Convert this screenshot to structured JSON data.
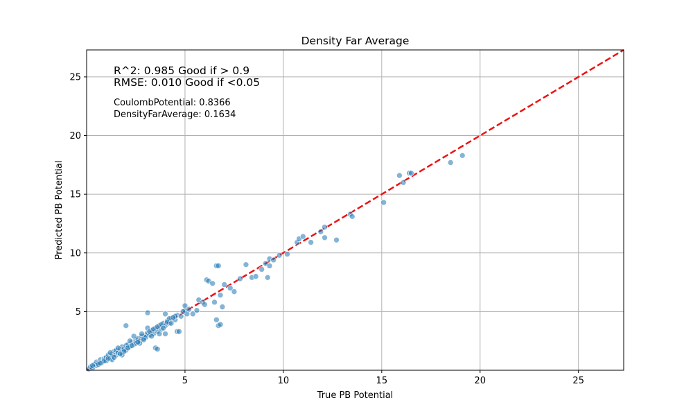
{
  "chart_data": {
    "type": "scatter",
    "title": "Density Far Average",
    "xlabel": "True PB Potential",
    "ylabel": "Predicted PB Potential",
    "xlim": [
      0,
      27.3
    ],
    "ylim": [
      0,
      27.3
    ],
    "xticks": [
      5,
      10,
      15,
      20,
      25
    ],
    "yticks": [
      5,
      10,
      15,
      20,
      25
    ],
    "grid": true,
    "point_color": "#1f77b4",
    "reference_line": {
      "style": "dashed",
      "color": "#ee1111",
      "from": [
        0,
        0
      ],
      "to": [
        27.3,
        27.3
      ]
    },
    "annotations": {
      "r2": "R^2: 0.985 Good if > 0.9",
      "rmse": "RMSE: 0.010 Good if <0.05",
      "feature_1": "CoulombPotential: 0.8366",
      "feature_2": "DensityFarAverage: 0.1634"
    },
    "points": [
      [
        0.1,
        0.1
      ],
      [
        0.2,
        0.3
      ],
      [
        0.3,
        0.2
      ],
      [
        0.4,
        0.5
      ],
      [
        0.5,
        0.4
      ],
      [
        0.5,
        0.7
      ],
      [
        0.6,
        0.6
      ],
      [
        0.7,
        0.9
      ],
      [
        0.8,
        0.7
      ],
      [
        0.9,
        1.0
      ],
      [
        1.0,
        0.8
      ],
      [
        1.0,
        1.1
      ],
      [
        1.1,
        1.3
      ],
      [
        1.2,
        1.0
      ],
      [
        1.3,
        1.4
      ],
      [
        1.3,
        1.2
      ],
      [
        1.4,
        1.6
      ],
      [
        1.5,
        1.3
      ],
      [
        1.5,
        1.7
      ],
      [
        1.6,
        1.5
      ],
      [
        1.7,
        1.8
      ],
      [
        1.8,
        1.5
      ],
      [
        1.8,
        2.0
      ],
      [
        1.9,
        1.8
      ],
      [
        2.0,
        2.1
      ],
      [
        2.0,
        1.7
      ],
      [
        2.1,
        2.2
      ],
      [
        2.2,
        2.0
      ],
      [
        2.3,
        2.4
      ],
      [
        2.4,
        2.2
      ],
      [
        2.5,
        2.6
      ],
      [
        2.5,
        2.3
      ],
      [
        2.6,
        2.7
      ],
      [
        2.7,
        2.5
      ],
      [
        2.8,
        2.9
      ],
      [
        2.9,
        2.7
      ],
      [
        3.0,
        3.0
      ],
      [
        3.0,
        2.8
      ],
      [
        3.1,
        3.2
      ],
      [
        3.2,
        3.0
      ],
      [
        3.3,
        3.4
      ],
      [
        3.4,
        3.1
      ],
      [
        3.5,
        3.6
      ],
      [
        3.6,
        3.3
      ],
      [
        3.7,
        3.8
      ],
      [
        3.8,
        3.5
      ],
      [
        3.9,
        4.0
      ],
      [
        4.0,
        3.8
      ],
      [
        4.1,
        4.2
      ],
      [
        4.2,
        4.0
      ],
      [
        4.3,
        4.4
      ],
      [
        4.5,
        4.3
      ],
      [
        4.6,
        4.7
      ],
      [
        4.8,
        4.6
      ],
      [
        5.0,
        5.1
      ],
      [
        5.1,
        4.8
      ],
      [
        1.3,
        0.9
      ],
      [
        1.8,
        1.3
      ],
      [
        2.0,
        3.8
      ],
      [
        2.1,
        1.9
      ],
      [
        2.4,
        2.9
      ],
      [
        2.7,
        2.3
      ],
      [
        3.1,
        4.9
      ],
      [
        3.1,
        3.6
      ],
      [
        3.5,
        1.9
      ],
      [
        3.6,
        1.8
      ],
      [
        3.7,
        3.1
      ],
      [
        4.0,
        3.1
      ],
      [
        4.0,
        4.8
      ],
      [
        4.2,
        4.4
      ],
      [
        4.5,
        4.6
      ],
      [
        4.6,
        3.3
      ],
      [
        4.7,
        3.3
      ],
      [
        4.9,
        5.0
      ],
      [
        5.0,
        5.5
      ],
      [
        5.2,
        5.2
      ],
      [
        5.4,
        4.8
      ],
      [
        5.6,
        5.1
      ],
      [
        5.7,
        6.0
      ],
      [
        5.9,
        5.8
      ],
      [
        6.0,
        5.6
      ],
      [
        6.1,
        7.7
      ],
      [
        6.2,
        7.6
      ],
      [
        6.4,
        7.4
      ],
      [
        6.5,
        5.8
      ],
      [
        6.6,
        4.3
      ],
      [
        6.6,
        8.9
      ],
      [
        6.7,
        8.9
      ],
      [
        6.7,
        3.8
      ],
      [
        6.8,
        3.9
      ],
      [
        6.8,
        6.4
      ],
      [
        6.9,
        5.4
      ],
      [
        7.0,
        7.3
      ],
      [
        7.3,
        7.0
      ],
      [
        7.5,
        6.7
      ],
      [
        7.8,
        7.8
      ],
      [
        8.1,
        9.0
      ],
      [
        8.4,
        7.9
      ],
      [
        8.6,
        8.0
      ],
      [
        8.9,
        8.6
      ],
      [
        9.1,
        9.1
      ],
      [
        9.2,
        7.9
      ],
      [
        9.3,
        8.9
      ],
      [
        9.3,
        9.5
      ],
      [
        9.5,
        9.4
      ],
      [
        9.8,
        9.8
      ],
      [
        10.2,
        9.9
      ],
      [
        10.7,
        10.9
      ],
      [
        10.8,
        11.2
      ],
      [
        11.0,
        11.4
      ],
      [
        11.4,
        10.9
      ],
      [
        11.9,
        11.8
      ],
      [
        12.1,
        11.3
      ],
      [
        12.1,
        12.2
      ],
      [
        12.7,
        11.1
      ],
      [
        13.4,
        13.3
      ],
      [
        13.5,
        13.1
      ],
      [
        15.1,
        14.3
      ],
      [
        15.9,
        16.6
      ],
      [
        16.1,
        16.0
      ],
      [
        16.4,
        16.8
      ],
      [
        16.5,
        16.8
      ],
      [
        18.5,
        17.7
      ],
      [
        19.1,
        18.3
      ],
      [
        0.3,
        0.4
      ],
      [
        0.6,
        0.5
      ],
      [
        0.9,
        0.8
      ],
      [
        1.1,
        1.0
      ],
      [
        1.4,
        1.1
      ],
      [
        1.6,
        1.9
      ],
      [
        1.9,
        1.6
      ],
      [
        2.2,
        2.5
      ],
      [
        2.3,
        2.1
      ],
      [
        2.6,
        2.4
      ],
      [
        2.8,
        3.1
      ],
      [
        2.9,
        2.6
      ],
      [
        3.2,
        3.3
      ],
      [
        3.3,
        2.9
      ],
      [
        3.4,
        3.5
      ],
      [
        3.6,
        3.7
      ],
      [
        3.8,
        3.9
      ],
      [
        3.9,
        3.6
      ],
      [
        4.1,
        4.1
      ],
      [
        4.3,
        4.0
      ],
      [
        4.4,
        4.5
      ],
      [
        1.7,
        1.4
      ],
      [
        1.2,
        1.5
      ],
      [
        0.7,
        0.6
      ]
    ]
  }
}
